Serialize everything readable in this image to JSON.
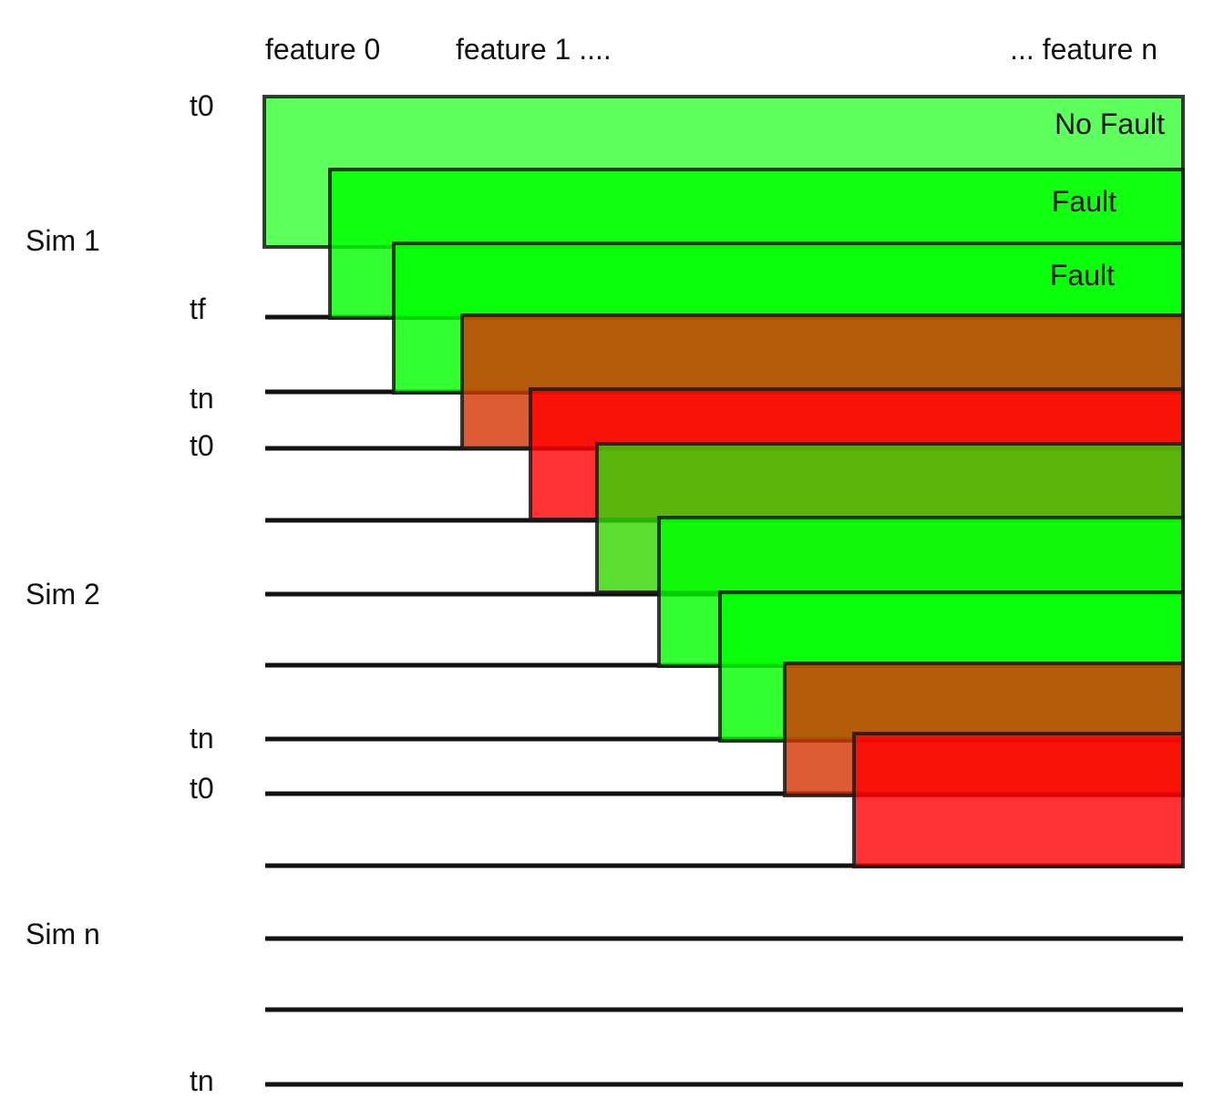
{
  "header": {
    "feature_0": "feature 0",
    "feature_1": "feature 1 ....",
    "feature_n": "... feature n"
  },
  "sims": {
    "sim_1": "Sim 1",
    "sim_2": "Sim 2",
    "sim_n": "Sim n"
  },
  "time_labels": {
    "t0_a": "t0",
    "tf": "tf",
    "tn_a": "tn",
    "t0_b": "t0",
    "tn_b": "tn",
    "t0_c": "t0",
    "tn_c": "tn"
  },
  "window_labels": {
    "no_fault": "No Fault",
    "fault_1": "Fault",
    "fault_2": "Fault"
  },
  "windows": [
    {
      "class": "no-fault",
      "fill": "#33ff33"
    },
    {
      "class": "fault",
      "fill": "#00ff00"
    },
    {
      "class": "fault",
      "fill": "#00ff00"
    },
    {
      "class": "detected-fault",
      "fill": "#d63300"
    },
    {
      "class": "detected-fault",
      "fill": "#ff0000"
    },
    {
      "class": "no-fault",
      "fill": "#33d600"
    },
    {
      "class": "fault",
      "fill": "#00ff00"
    },
    {
      "class": "fault",
      "fill": "#00ff00"
    },
    {
      "class": "detected-fault",
      "fill": "#d63300"
    },
    {
      "class": "detected-fault",
      "fill": "#ff0000"
    }
  ]
}
